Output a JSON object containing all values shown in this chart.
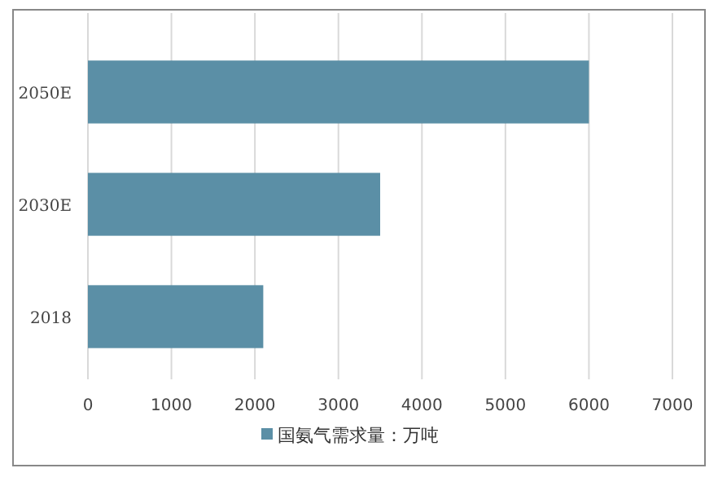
{
  "chart_data": {
    "type": "bar",
    "orientation": "horizontal",
    "categories": [
      "2050E",
      "2030E",
      "2018"
    ],
    "series": [
      {
        "name": "国氨气需求量：万吨",
        "color": "#5b8fa6",
        "values": [
          6000,
          3500,
          2100
        ]
      }
    ],
    "xlim": [
      0,
      7000
    ],
    "xticks": [
      0,
      1000,
      2000,
      3000,
      4000,
      5000,
      6000,
      7000
    ],
    "grid": "x",
    "legend": "bottom"
  }
}
